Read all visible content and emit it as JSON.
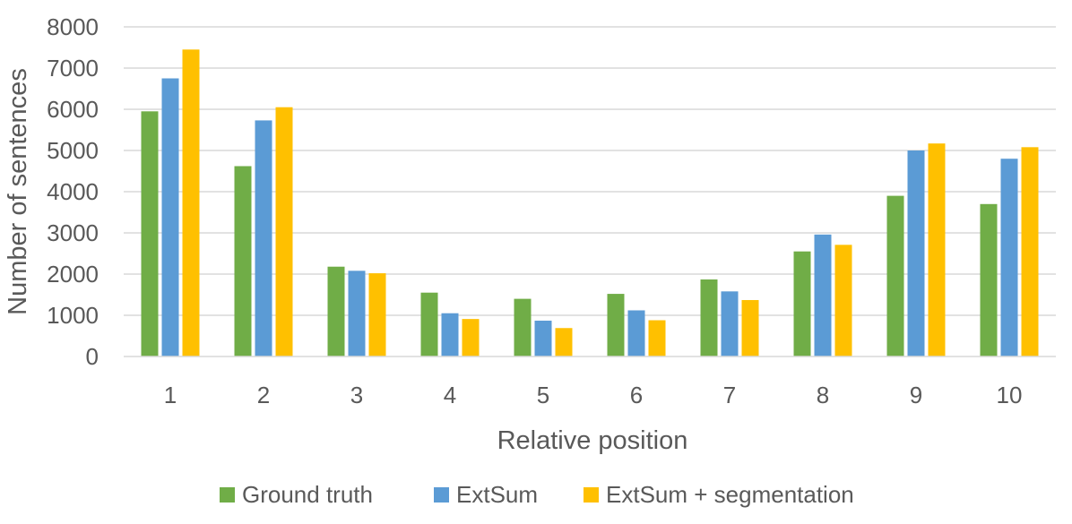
{
  "chart_data": {
    "type": "bar",
    "title": "",
    "xlabel": "Relative position",
    "ylabel": "Number of sentences",
    "ylim": [
      0,
      8000
    ],
    "yticks": [
      0,
      1000,
      2000,
      3000,
      4000,
      5000,
      6000,
      7000,
      8000
    ],
    "grid": true,
    "legend_position": "bottom",
    "categories": [
      "1",
      "2",
      "3",
      "4",
      "5",
      "6",
      "7",
      "8",
      "9",
      "10"
    ],
    "series": [
      {
        "name": "Ground truth",
        "color": "#70ad47",
        "values": [
          5950,
          4620,
          2180,
          1550,
          1400,
          1520,
          1870,
          2550,
          3900,
          3700
        ]
      },
      {
        "name": "ExtSum",
        "color": "#5b9bd5",
        "values": [
          6750,
          5730,
          2080,
          1050,
          870,
          1120,
          1580,
          2960,
          5000,
          4800
        ]
      },
      {
        "name": "ExtSum + segmentation",
        "color": "#ffc000",
        "values": [
          7450,
          6050,
          2020,
          910,
          690,
          880,
          1370,
          2710,
          5170,
          5080
        ]
      }
    ]
  }
}
